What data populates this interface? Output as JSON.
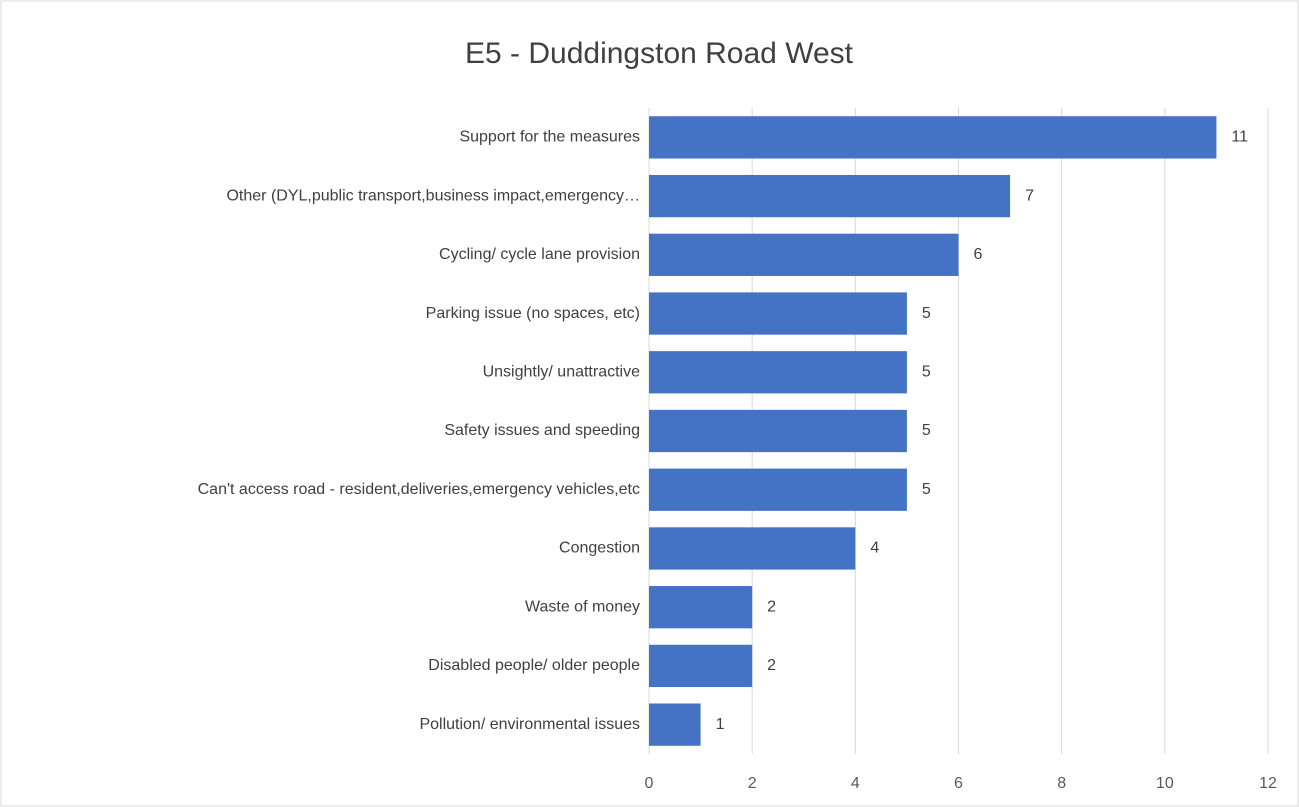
{
  "chart_data": {
    "type": "bar",
    "orientation": "horizontal",
    "title": "E5 - Duddingston Road West",
    "categories": [
      "Support for the measures",
      "Other (DYL,public transport,business impact,emergency…",
      "Cycling/ cycle lane provision",
      "Parking issue (no spaces, etc)",
      "Unsightly/ unattractive",
      "Safety issues and speeding",
      "Can't access road - resident,deliveries,emergency vehicles,etc",
      "Congestion",
      "Waste of money",
      "Disabled people/ older people",
      "Pollution/ environmental issues"
    ],
    "values": [
      11,
      7,
      6,
      5,
      5,
      5,
      5,
      4,
      2,
      2,
      1
    ],
    "color": "#4472c4",
    "xlim": [
      0,
      12
    ],
    "xticks": [
      0,
      2,
      4,
      6,
      8,
      10,
      12
    ],
    "grid": true
  }
}
